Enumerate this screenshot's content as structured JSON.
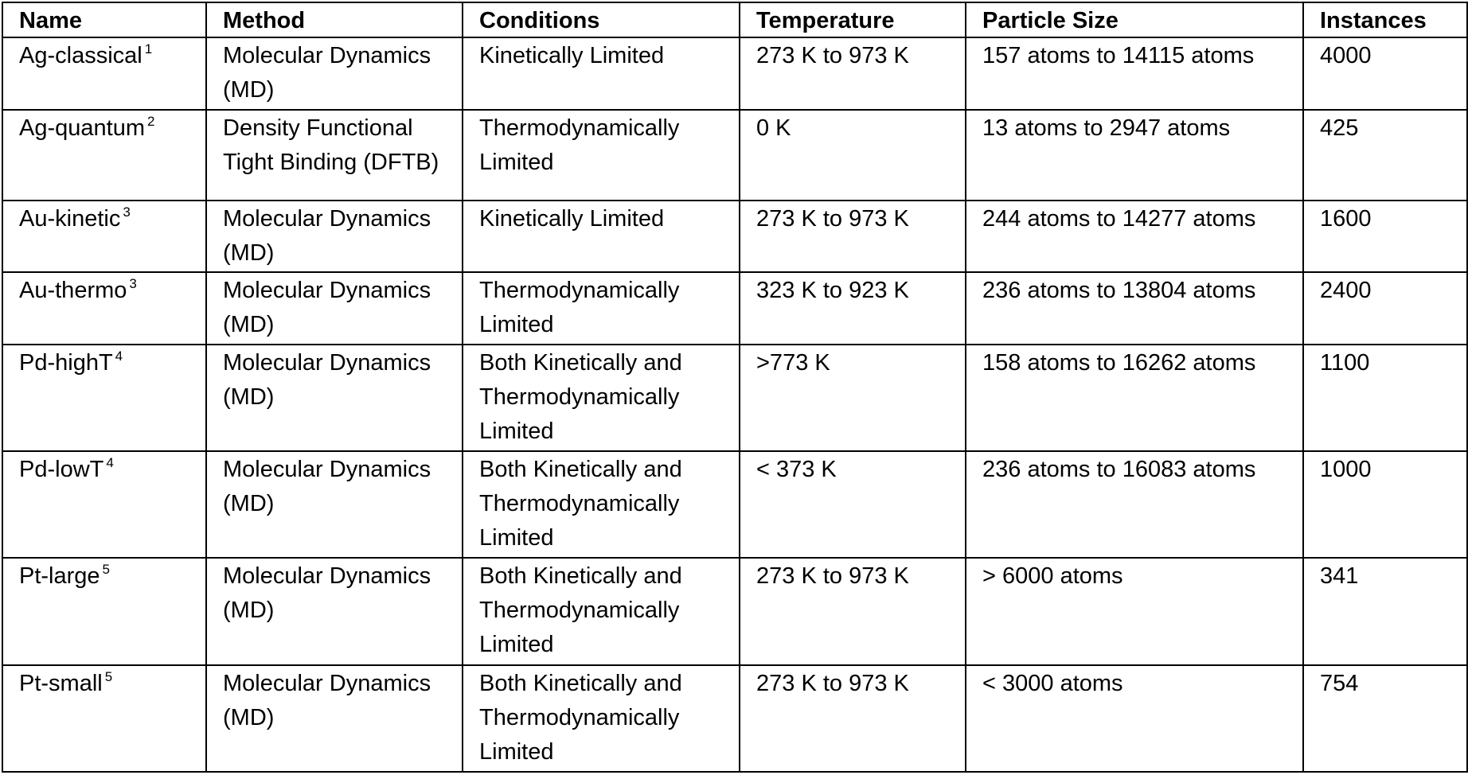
{
  "table": {
    "headers": [
      "Name",
      "Method",
      "Conditions",
      "Temperature",
      "Particle Size",
      "Instances"
    ],
    "rows": [
      {
        "name": "Ag-classical",
        "ref": "1",
        "method": "Molecular Dynamics (MD)",
        "conditions": "Kinetically Limited",
        "temperature": "273 K to 973 K",
        "size": "157 atoms to 14115 atoms",
        "instances": "4000"
      },
      {
        "name": "Ag-quantum",
        "ref": "2",
        "method": "Density Functional Tight Binding (DFTB)",
        "conditions": "Thermodynamically Limited",
        "temperature": "0 K",
        "size": "13 atoms to 2947 atoms",
        "instances": "425"
      },
      {
        "name": "Au-kinetic",
        "ref": "3",
        "method": "Molecular Dynamics (MD)",
        "conditions": "Kinetically Limited",
        "temperature": "273 K to 973 K",
        "size": "244 atoms to 14277 atoms",
        "instances": "1600"
      },
      {
        "name": "Au-thermo",
        "ref": "3",
        "method": "Molecular Dynamics (MD)",
        "conditions": "Thermodynamically Limited",
        "temperature": "323 K to 923 K",
        "size": "236 atoms to 13804 atoms",
        "instances": "2400"
      },
      {
        "name": "Pd-highT",
        "ref": "4",
        "method": "Molecular Dynamics (MD)",
        "conditions": "Both Kinetically and Thermodynamically Limited",
        "temperature": ">773 K",
        "size": "158 atoms to 16262 atoms",
        "instances": "1100"
      },
      {
        "name": "Pd-lowT",
        "ref": "4",
        "method": "Molecular Dynamics (MD)",
        "conditions": "Both Kinetically and Thermodynamically Limited",
        "temperature": "< 373 K",
        "size": "236 atoms to 16083 atoms",
        "instances": "1000"
      },
      {
        "name": "Pt-large",
        "ref": "5",
        "method": "Molecular Dynamics (MD)",
        "conditions": "Both Kinetically and Thermodynamically Limited",
        "temperature": "273 K to 973 K",
        "size": "> 6000 atoms",
        "instances": "341"
      },
      {
        "name": "Pt-small",
        "ref": "5",
        "method": "Molecular Dynamics (MD)",
        "conditions": "Both Kinetically and Thermodynamically Limited",
        "temperature": "273 K to 973 K",
        "size": "< 3000 atoms",
        "instances": "754"
      }
    ]
  }
}
